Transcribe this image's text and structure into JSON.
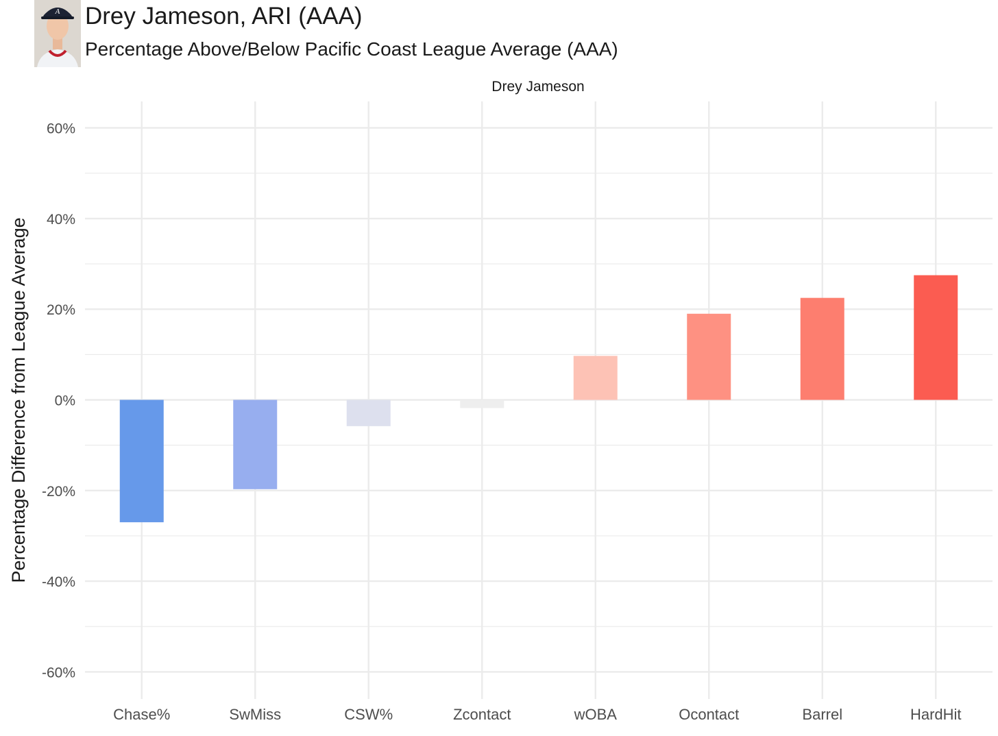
{
  "header": {
    "title": "Drey Jameson, ARI (AAA)",
    "subtitle": "Percentage Above/Below Pacific Coast League Average (AAA)"
  },
  "colors": {
    "negative_strong": "#6699ea",
    "neutral": "#eeeeee",
    "positive_strong": "#fb5c51",
    "grid": "#ebebeb"
  },
  "chart_data": {
    "type": "bar",
    "facet_label": "Drey Jameson",
    "title": "Drey Jameson, ARI (AAA)",
    "subtitle": "Percentage Above/Below Pacific Coast League Average (AAA)",
    "xlabel": "",
    "ylabel": "Percentage Difference from League Average",
    "categories": [
      "Chase%",
      "SwMiss",
      "CSW%",
      "Zcontact",
      "wOBA",
      "Ocontact",
      "Barrel",
      "HardHit"
    ],
    "values": [
      -27,
      -19.7,
      -5.8,
      -1.8,
      9.7,
      19,
      22.5,
      27.5
    ],
    "colors": [
      "#6699ea",
      "#97aeef",
      "#dde0ee",
      "#eeeeee",
      "#fdc2b5",
      "#fe9182",
      "#fd7e6f",
      "#fb5c51"
    ],
    "ylim": [
      -65,
      66
    ],
    "yticks": [
      -60,
      -40,
      -20,
      0,
      20,
      40,
      60
    ],
    "ytick_labels": [
      "-60%",
      "-40%",
      "-20%",
      "0%",
      "20%",
      "40%",
      "60%"
    ],
    "grid": true,
    "legend": "none"
  }
}
